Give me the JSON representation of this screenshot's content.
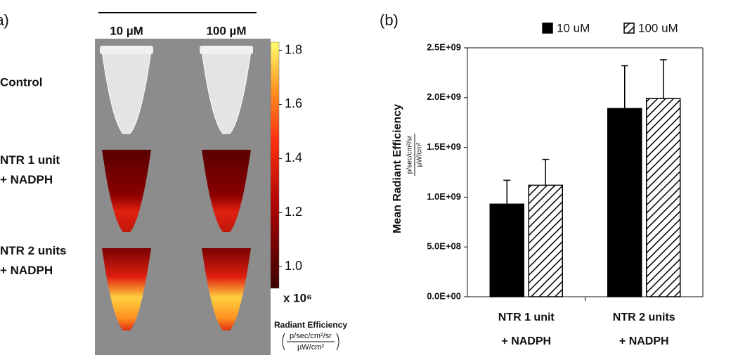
{
  "chart_data": [
    {
      "type": "image",
      "panel_label": "(a)",
      "columns": [
        "10 µM",
        "100 µM"
      ],
      "rows": [
        "Control",
        "NTR 1 unit\n+ NADPH",
        "NTR 2 units\n+ NADPH"
      ],
      "colorbar": {
        "clim": [
          0.92,
          1.83
        ],
        "ticks": [
          {
            "value": 1.0,
            "label": "1.0"
          },
          1.2,
          1.4,
          1.6,
          1.8
        ],
        "multiplier": "x 10⁶",
        "label": "Radiant Efficiency",
        "units_numerator": "p/sec/cm²/sr",
        "units_denominator": "µW/cm²"
      }
    },
    {
      "type": "bar",
      "panel_label": "(b)",
      "y_label": "Mean Radiant Efficiency",
      "y_units_numerator": "p/sec/cm²/sr",
      "y_units_denominator": "µW/cm²",
      "categories": [
        "NTR 1 unit\n+ NADPH",
        "NTR 2 units\n+ NADPH"
      ],
      "series": [
        {
          "name": "10 uM",
          "color": "#000000",
          "hatch": false,
          "values": [
            930000000,
            1890000000
          ],
          "errors": [
            240000000,
            430000000
          ]
        },
        {
          "name": "100 uM",
          "color": "#ffffff",
          "hatch": true,
          "values": [
            1120000000,
            1990000000
          ],
          "errors": [
            260000000,
            390000000
          ]
        }
      ],
      "ylim": [
        0,
        2500000000
      ],
      "yticks": [
        {
          "value": 0,
          "label": "0.0E+00"
        },
        {
          "value": 500000000,
          "label": "5.0E+08"
        },
        {
          "value": 1000000000,
          "label": "1.0E+09"
        },
        {
          "value": 1500000000,
          "label": "1.5E+09"
        },
        {
          "value": 2000000000,
          "label": "2.0E+09"
        },
        {
          "value": 2500000000,
          "label": "2.5E+09"
        }
      ]
    }
  ]
}
